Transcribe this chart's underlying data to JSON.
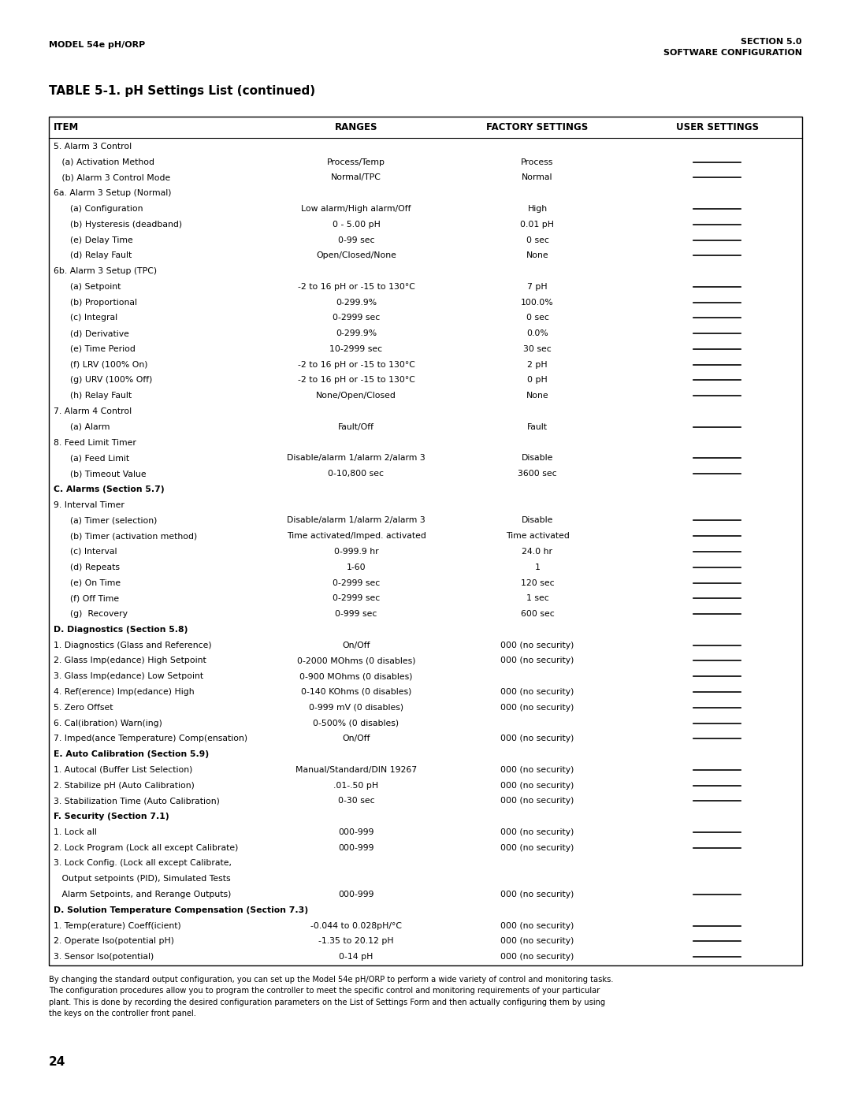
{
  "header_left": "MODEL 54e pH/ORP",
  "header_right_line1": "SECTION 5.0",
  "header_right_line2": "SOFTWARE CONFIGURATION",
  "table_title": "TABLE 5-1. pH Settings List (continued)",
  "col_headers": [
    "ITEM",
    "RANGES",
    "FACTORY SETTINGS",
    "USER SETTINGS"
  ],
  "footer_text": "By changing the standard output configuration, you can set up the Model 54e pH/ORP to perform a wide variety of control and monitoring tasks.\nThe configuration procedures allow you to program the controller to meet the specific control and monitoring requirements of your particular\nplant. This is done by recording the desired configuration parameters on the List of Settings Form and then actually configuring them by using\nthe keys on the controller front panel.",
  "page_number": "24",
  "rows": [
    {
      "item": "5. Alarm 3 Control",
      "ranges": "",
      "factory": "",
      "user_line": false,
      "bold": false
    },
    {
      "item": "   (a) Activation Method",
      "ranges": "Process/Temp",
      "factory": "Process",
      "user_line": true,
      "bold": false
    },
    {
      "item": "   (b) Alarm 3 Control Mode",
      "ranges": "Normal/TPC",
      "factory": "Normal",
      "user_line": true,
      "bold": false
    },
    {
      "item": "6a. Alarm 3 Setup (Normal)",
      "ranges": "",
      "factory": "",
      "user_line": false,
      "bold": false
    },
    {
      "item": "      (a) Configuration",
      "ranges": "Low alarm/High alarm/Off",
      "factory": "High",
      "user_line": true,
      "bold": false
    },
    {
      "item": "      (b) Hysteresis (deadband)",
      "ranges": "0 - 5.00 pH",
      "factory": "0.01 pH",
      "user_line": true,
      "bold": false
    },
    {
      "item": "      (e) Delay Time",
      "ranges": "0-99 sec",
      "factory": "0 sec",
      "user_line": true,
      "bold": false
    },
    {
      "item": "      (d) Relay Fault",
      "ranges": "Open/Closed/None",
      "factory": "None",
      "user_line": true,
      "bold": false
    },
    {
      "item": "6b. Alarm 3 Setup (TPC)",
      "ranges": "",
      "factory": "",
      "user_line": false,
      "bold": false
    },
    {
      "item": "      (a) Setpoint",
      "ranges": "-2 to 16 pH or -15 to 130°C",
      "factory": "7 pH",
      "user_line": true,
      "bold": false
    },
    {
      "item": "      (b) Proportional",
      "ranges": "0-299.9%",
      "factory": "100.0%",
      "user_line": true,
      "bold": false
    },
    {
      "item": "      (c) Integral",
      "ranges": "0-2999 sec",
      "factory": "0 sec",
      "user_line": true,
      "bold": false
    },
    {
      "item": "      (d) Derivative",
      "ranges": "0-299.9%",
      "factory": "0.0%",
      "user_line": true,
      "bold": false
    },
    {
      "item": "      (e) Time Period",
      "ranges": "10-2999 sec",
      "factory": "30 sec",
      "user_line": true,
      "bold": false
    },
    {
      "item": "      (f) LRV (100% On)",
      "ranges": "-2 to 16 pH or -15 to 130°C",
      "factory": "2 pH",
      "user_line": true,
      "bold": false
    },
    {
      "item": "      (g) URV (100% Off)",
      "ranges": "-2 to 16 pH or -15 to 130°C",
      "factory": "0 pH",
      "user_line": true,
      "bold": false
    },
    {
      "item": "      (h) Relay Fault",
      "ranges": "None/Open/Closed",
      "factory": "None",
      "user_line": true,
      "bold": false
    },
    {
      "item": "7. Alarm 4 Control",
      "ranges": "",
      "factory": "",
      "user_line": false,
      "bold": false
    },
    {
      "item": "      (a) Alarm",
      "ranges": "Fault/Off",
      "factory": "Fault",
      "user_line": true,
      "bold": false
    },
    {
      "item": "8. Feed Limit Timer",
      "ranges": "",
      "factory": "",
      "user_line": false,
      "bold": false
    },
    {
      "item": "      (a) Feed Limit",
      "ranges": "Disable/alarm 1/alarm 2/alarm 3",
      "factory": "Disable",
      "user_line": true,
      "bold": false
    },
    {
      "item": "      (b) Timeout Value",
      "ranges": "0-10,800 sec",
      "factory": "3600 sec",
      "user_line": true,
      "bold": false
    },
    {
      "item": "C. Alarms (Section 5.7)",
      "ranges": "",
      "factory": "",
      "user_line": false,
      "bold": true
    },
    {
      "item": "9. Interval Timer",
      "ranges": "",
      "factory": "",
      "user_line": false,
      "bold": false
    },
    {
      "item": "      (a) Timer (selection)",
      "ranges": "Disable/alarm 1/alarm 2/alarm 3",
      "factory": "Disable",
      "user_line": true,
      "bold": false
    },
    {
      "item": "      (b) Timer (activation method)",
      "ranges": "Time activated/Imped. activated",
      "factory": "Time activated",
      "user_line": true,
      "bold": false
    },
    {
      "item": "      (c) Interval",
      "ranges": "0-999.9 hr",
      "factory": "24.0 hr",
      "user_line": true,
      "bold": false
    },
    {
      "item": "      (d) Repeats",
      "ranges": "1-60",
      "factory": "1",
      "user_line": true,
      "bold": false
    },
    {
      "item": "      (e) On Time",
      "ranges": "0-2999 sec",
      "factory": "120 sec",
      "user_line": true,
      "bold": false
    },
    {
      "item": "      (f) Off Time",
      "ranges": "0-2999 sec",
      "factory": "1 sec",
      "user_line": true,
      "bold": false
    },
    {
      "item": "      (g)  Recovery",
      "ranges": "0-999 sec",
      "factory": "600 sec",
      "user_line": true,
      "bold": false
    },
    {
      "item": "D. Diagnostics (Section 5.8)",
      "ranges": "",
      "factory": "",
      "user_line": false,
      "bold": true
    },
    {
      "item": "1. Diagnostics (Glass and Reference)",
      "ranges": "On/Off",
      "factory": "000 (no security)",
      "user_line": true,
      "bold": false
    },
    {
      "item": "2. Glass Imp(edance) High Setpoint",
      "ranges": "0-2000 MOhms (0 disables)",
      "factory": "000 (no security)",
      "user_line": true,
      "bold": false
    },
    {
      "item": "3. Glass Imp(edance) Low Setpoint",
      "ranges": "0-900 MOhms (0 disables)",
      "factory": "",
      "user_line": true,
      "bold": false
    },
    {
      "item": "4. Ref(erence) Imp(edance) High",
      "ranges": "0-140 KOhms (0 disables)",
      "factory": "000 (no security)",
      "user_line": true,
      "bold": false
    },
    {
      "item": "5. Zero Offset",
      "ranges": "0-999 mV (0 disables)",
      "factory": "000 (no security)",
      "user_line": true,
      "bold": false
    },
    {
      "item": "6. Cal(ibration) Warn(ing)",
      "ranges": "0-500% (0 disables)",
      "factory": "",
      "user_line": true,
      "bold": false
    },
    {
      "item": "7. Imped(ance Temperature) Comp(ensation)",
      "ranges": "On/Off",
      "factory": "000 (no security)",
      "user_line": true,
      "bold": false
    },
    {
      "item": "E. Auto Calibration (Section 5.9)",
      "ranges": "",
      "factory": "",
      "user_line": false,
      "bold": true
    },
    {
      "item": "1. Autocal (Buffer List Selection)",
      "ranges": "Manual/Standard/DIN 19267",
      "factory": "000 (no security)",
      "user_line": true,
      "bold": false
    },
    {
      "item": "2. Stabilize pH (Auto Calibration)",
      "ranges": ".01-.50 pH",
      "factory": "000 (no security)",
      "user_line": true,
      "bold": false
    },
    {
      "item": "3. Stabilization Time (Auto Calibration)",
      "ranges": "0-30 sec",
      "factory": "000 (no security)",
      "user_line": true,
      "bold": false
    },
    {
      "item": "F. Security (Section 7.1)",
      "ranges": "",
      "factory": "",
      "user_line": false,
      "bold": true
    },
    {
      "item": "1. Lock all",
      "ranges": "000-999",
      "factory": "000 (no security)",
      "user_line": true,
      "bold": false
    },
    {
      "item": "2. Lock Program (Lock all except Calibrate)",
      "ranges": "000-999",
      "factory": "000 (no security)",
      "user_line": true,
      "bold": false
    },
    {
      "item": "3. Lock Config. (Lock all except Calibrate,",
      "ranges": "",
      "factory": "",
      "user_line": false,
      "bold": false
    },
    {
      "item": "   Output setpoints (PID), Simulated Tests",
      "ranges": "",
      "factory": "",
      "user_line": false,
      "bold": false
    },
    {
      "item": "   Alarm Setpoints, and Rerange Outputs)",
      "ranges": "000-999",
      "factory": "000 (no security)",
      "user_line": true,
      "bold": false
    },
    {
      "item": "D. Solution Temperature Compensation (Section 7.3)",
      "ranges": "",
      "factory": "",
      "user_line": false,
      "bold": true
    },
    {
      "item": "1. Temp(erature) Coeff(icient)",
      "ranges": "-0.044 to 0.028pH/°C",
      "factory": "000 (no security)",
      "user_line": true,
      "bold": false
    },
    {
      "item": "2. Operate Iso(potential pH)",
      "ranges": "-1.35 to 20.12 pH",
      "factory": "000 (no security)",
      "user_line": true,
      "bold": false
    },
    {
      "item": "3. Sensor Iso(potential)",
      "ranges": "0-14 pH",
      "factory": "000 (no security)",
      "user_line": true,
      "bold": false
    }
  ],
  "bg_color": "#ffffff",
  "text_color": "#000000",
  "line_color": "#000000"
}
